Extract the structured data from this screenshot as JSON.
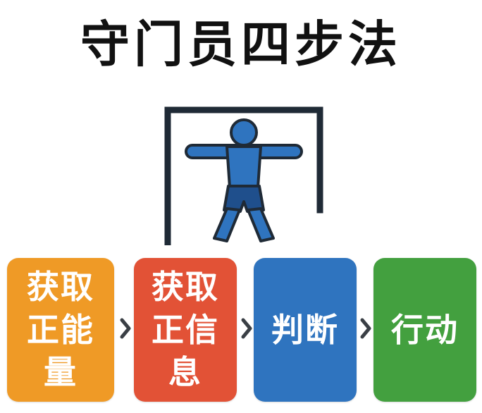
{
  "title": "守门员四步法",
  "steps": [
    {
      "lines": [
        "获取",
        "正能",
        "量"
      ],
      "color": "#ef9a26"
    },
    {
      "lines": [
        "获取",
        "正信",
        "息"
      ],
      "color": "#e25236"
    },
    {
      "lines": [
        "判断"
      ],
      "color": "#2f74bf"
    },
    {
      "lines": [
        "行动"
      ],
      "color": "#43a03f"
    }
  ],
  "icons": [
    "goalkeeper-icon",
    "chevron-right-icon"
  ],
  "colors": {
    "keeper_fill": "#2f74bf",
    "outline": "#1f2a36",
    "title": "#111111",
    "arrow": "#3a3f45"
  }
}
